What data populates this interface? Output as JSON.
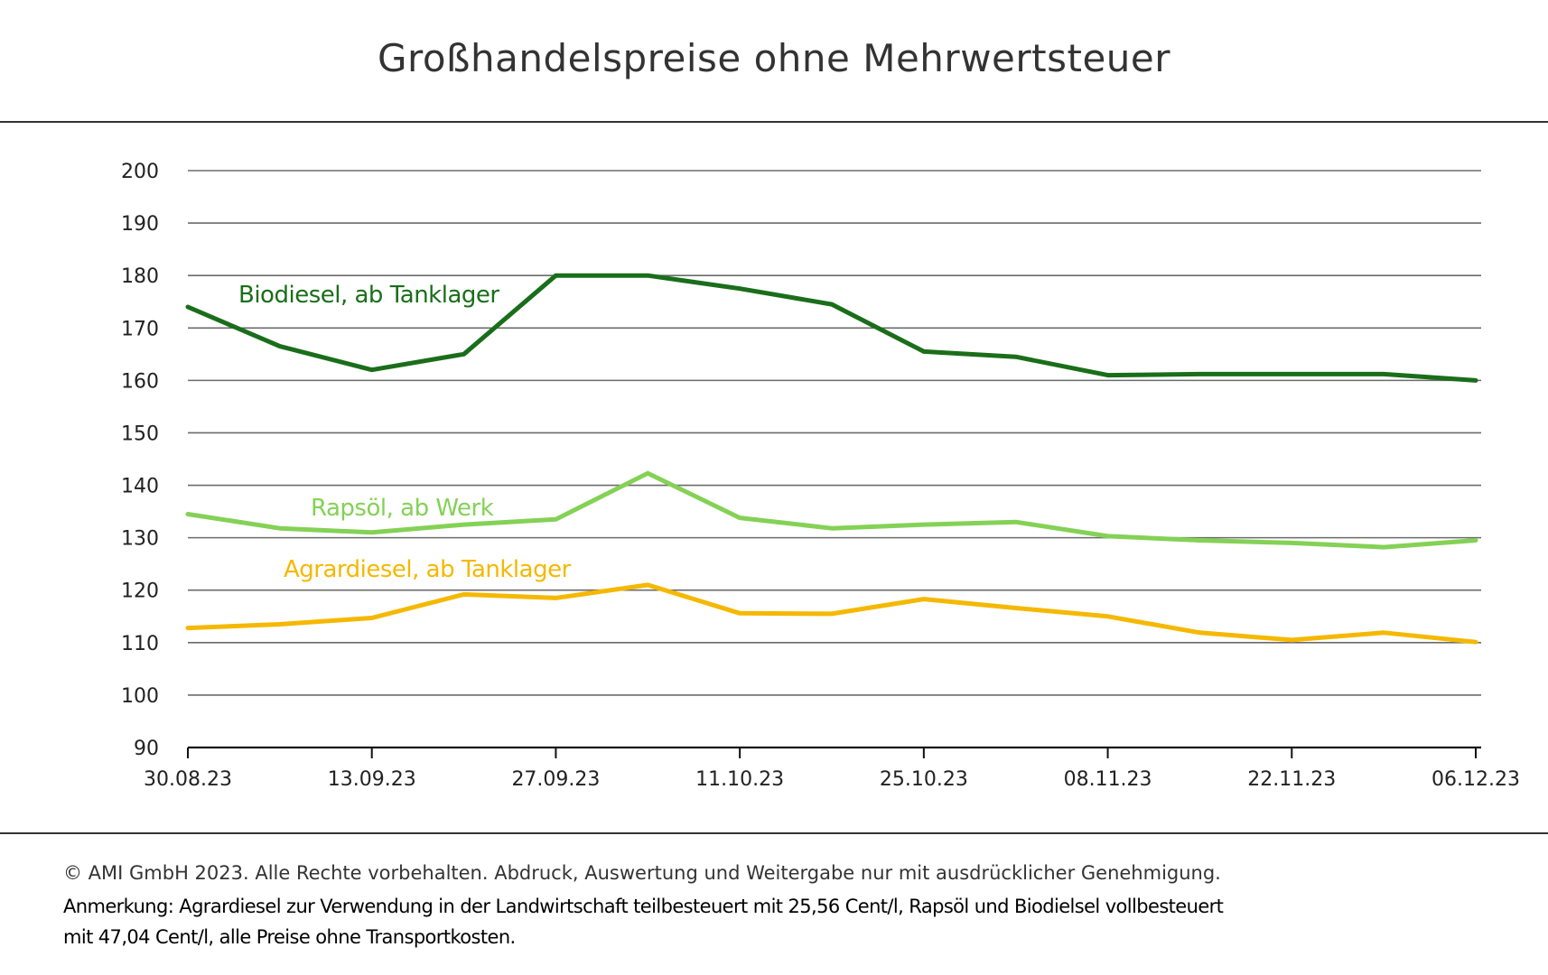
{
  "title": "Großhandelspreise ohne Mehrwertsteuer",
  "footer": {
    "copyright": "© AMI GmbH 2023.  Alle Rechte vorbehalten.  Abdruck, Auswertung und Weitergabe nur mit ausdrücklicher Genehmigung.",
    "note_line1": "Anmerkung: Agrardiesel zur Verwendung in der Landwirtschaft  teilbesteuert mit 25,56 Cent/l, Rapsöl und Biodielsel vollbesteuert",
    "note_line2": "mit 47,04 Cent/l, alle Preise ohne Transportkosten."
  },
  "chart_data": {
    "type": "line",
    "title": "Großhandelspreise ohne Mehrwertsteuer",
    "xlabel": "",
    "ylabel": "",
    "ylim": [
      90,
      200
    ],
    "yticks": [
      90,
      100,
      110,
      120,
      130,
      140,
      150,
      160,
      170,
      180,
      190,
      200
    ],
    "grid": true,
    "x": [
      "30.08.23",
      "06.09.23",
      "13.09.23",
      "20.09.23",
      "27.09.23",
      "04.10.23",
      "11.10.23",
      "18.10.23",
      "25.10.23",
      "01.11.23",
      "08.11.23",
      "15.11.23",
      "22.11.23",
      "29.11.23",
      "06.12.23"
    ],
    "xtick_labels": [
      "30.08.23",
      "13.09.23",
      "27.09.23",
      "11.10.23",
      "25.10.23",
      "08.11.23",
      "22.11.23",
      "06.12.23"
    ],
    "series": [
      {
        "name": "Biodiesel, ab Tanklager",
        "color": "#1a6e1a",
        "values": [
          174,
          166.5,
          162,
          165,
          180,
          180,
          177.5,
          174.5,
          165.5,
          164.5,
          161,
          161.2,
          161.2,
          161.2,
          160
        ]
      },
      {
        "name": "Rapsöl, ab Werk",
        "color": "#84d156",
        "values": [
          134.5,
          131.8,
          131,
          132.5,
          133.5,
          142.3,
          133.8,
          131.8,
          132.5,
          133,
          130.3,
          129.5,
          129,
          128.2,
          129.5
        ]
      },
      {
        "name": "Agrardiesel, ab Tanklager",
        "color": "#f5b800",
        "values": [
          112.8,
          113.5,
          114.7,
          119.2,
          118.5,
          121,
          115.6,
          115.5,
          118.3,
          116.6,
          115,
          111.9,
          110.5,
          111.9,
          110.1
        ]
      }
    ]
  }
}
